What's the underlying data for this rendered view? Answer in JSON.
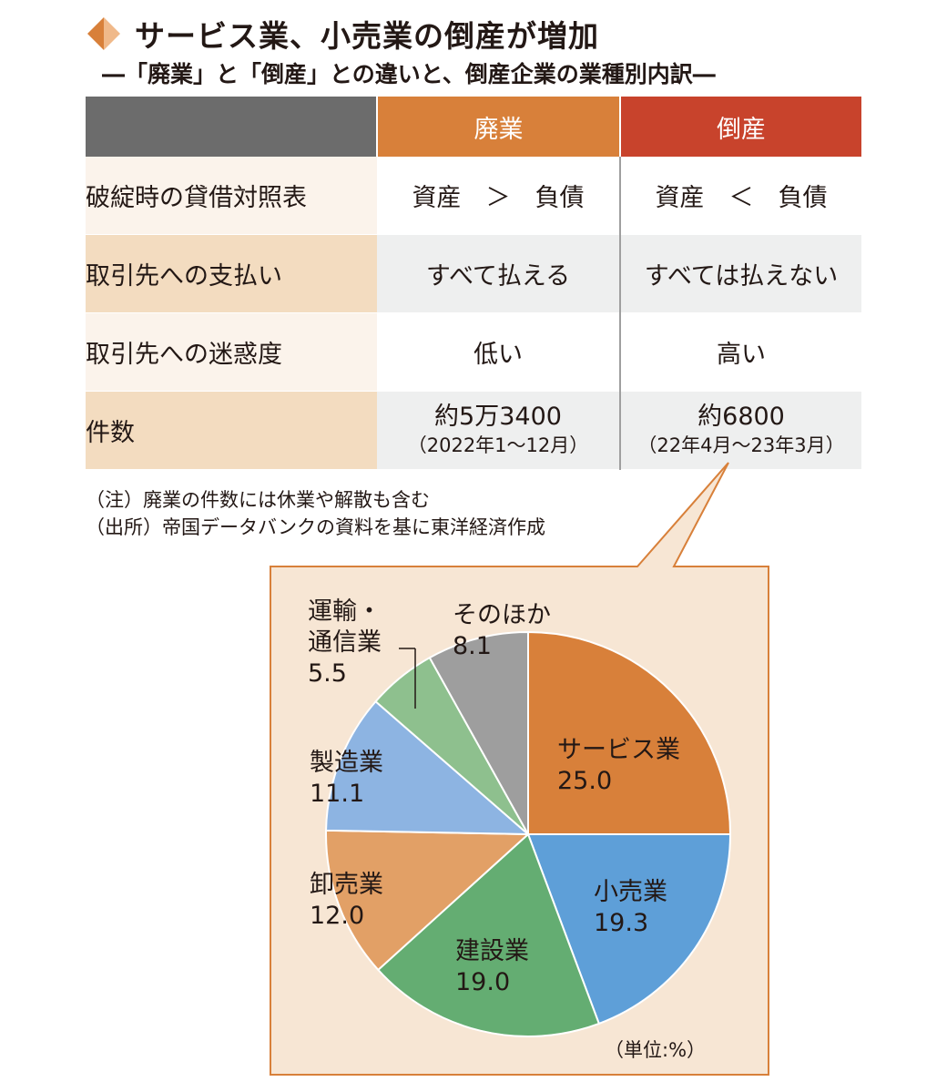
{
  "header": {
    "title": "サービス業、小売業の倒産が増加",
    "subtitle": "―「廃業」と「倒産」との違いと、倒産企業の業種別内訳―",
    "diamond_colors": [
      "#d8803a",
      "#f0b98a"
    ]
  },
  "table": {
    "columns": [
      "廃業",
      "倒産"
    ],
    "rows": [
      {
        "label": "破綻時の貸借対照表",
        "haigyo": "資産　＞　負債",
        "tosan": "資産　＜　負債"
      },
      {
        "label": "取引先への支払い",
        "haigyo": "すべて払える",
        "tosan": "すべては払えない"
      },
      {
        "label": "取引先への迷惑度",
        "haigyo": "低い",
        "tosan": "高い"
      }
    ],
    "count_row": {
      "label": "件数",
      "haigyo": "約5万3400",
      "haigyo_sub": "（2022年1～12月）",
      "tosan": "約6800",
      "tosan_sub": "（22年4月～23年3月）"
    }
  },
  "notes": {
    "note": "（注）廃業の件数には休業や解散も含む",
    "source": "（出所）帝国データバンクの資料を基に東洋経済作成"
  },
  "chart_data": {
    "type": "pie",
    "unit_label": "（単位:%）",
    "start": "12 o'clock, clockwise",
    "background": "#f7e6d4",
    "border": "#d8803a",
    "slices": [
      {
        "name": "サービス業",
        "value": 25.0,
        "label": "25.0",
        "color": "#d8803a"
      },
      {
        "name": "小売業",
        "value": 19.3,
        "label": "19.3",
        "color": "#5e9fd8"
      },
      {
        "name": "建設業",
        "value": 19.0,
        "label": "19.0",
        "color": "#64ad72"
      },
      {
        "name": "卸売業",
        "value": 12.0,
        "label": "12.0",
        "color": "#e2a066"
      },
      {
        "name": "製造業",
        "value": 11.1,
        "label": "11.1",
        "color": "#8db4e2"
      },
      {
        "name": "運輸・通信業",
        "name_lines": [
          "運輸・",
          "通信業"
        ],
        "value": 5.5,
        "label": "5.5",
        "color": "#8ec08e"
      },
      {
        "name": "そのほか",
        "value": 8.1,
        "label": "8.1",
        "color": "#9e9e9e"
      }
    ]
  }
}
